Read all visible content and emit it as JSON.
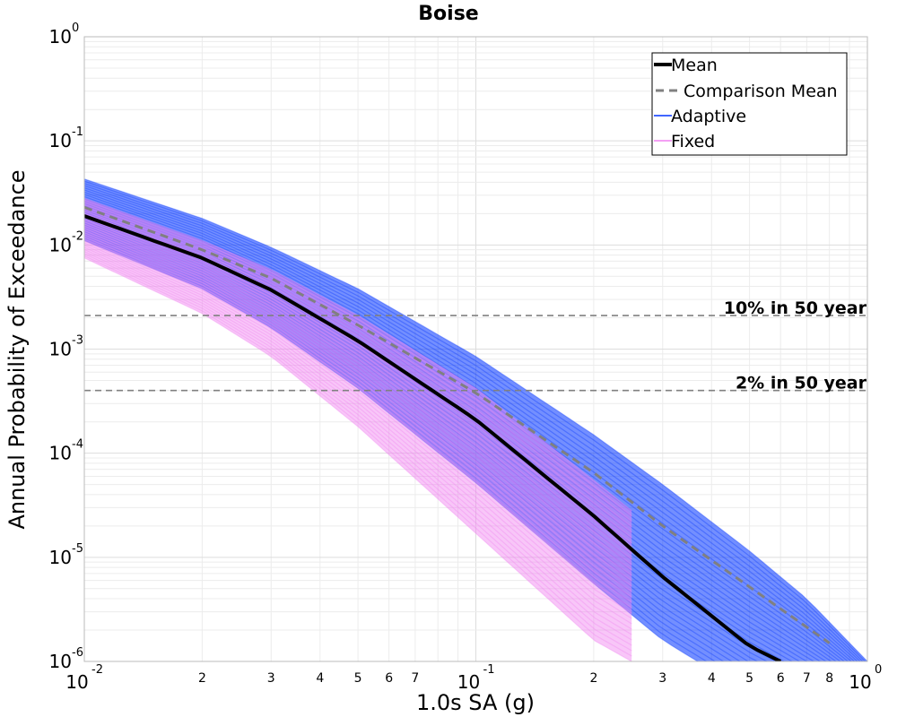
{
  "chart_data": {
    "type": "line",
    "title": "Boise",
    "xlabel": "1.0s SA (g)",
    "ylabel": "Annual Probability of Exceedance",
    "xscale": "log",
    "yscale": "log",
    "xlim": [
      0.01,
      1.0
    ],
    "ylim": [
      1e-06,
      1.0
    ],
    "grid": true,
    "legend_position": "top-right",
    "x_tick_labels": {
      "major": [
        {
          "value": 0.01,
          "base": "10",
          "exp": "-2"
        },
        {
          "value": 0.1,
          "base": "10",
          "exp": "-1"
        },
        {
          "value": 1.0,
          "base": "10",
          "exp": "0"
        }
      ],
      "minor": [
        {
          "value": 0.02,
          "label": "2"
        },
        {
          "value": 0.03,
          "label": "3"
        },
        {
          "value": 0.04,
          "label": "4"
        },
        {
          "value": 0.05,
          "label": "5"
        },
        {
          "value": 0.06,
          "label": "6"
        },
        {
          "value": 0.07,
          "label": "7"
        },
        {
          "value": 0.2,
          "label": "2"
        },
        {
          "value": 0.3,
          "label": "3"
        },
        {
          "value": 0.4,
          "label": "4"
        },
        {
          "value": 0.5,
          "label": "5"
        },
        {
          "value": 0.6,
          "label": "6"
        },
        {
          "value": 0.7,
          "label": "7"
        },
        {
          "value": 0.8,
          "label": "8"
        }
      ]
    },
    "y_tick_labels": [
      {
        "value": 1.0,
        "base": "10",
        "exp": "0"
      },
      {
        "value": 0.1,
        "base": "10",
        "exp": "-1"
      },
      {
        "value": 0.01,
        "base": "10",
        "exp": "-2"
      },
      {
        "value": 0.001,
        "base": "10",
        "exp": "-3"
      },
      {
        "value": 0.0001,
        "base": "10",
        "exp": "-4"
      },
      {
        "value": 1e-05,
        "base": "10",
        "exp": "-5"
      },
      {
        "value": 1e-06,
        "base": "10",
        "exp": "-6"
      }
    ],
    "series": [
      {
        "name": "Mean",
        "color": "#000000",
        "style": "solid",
        "x": [
          0.01,
          0.02,
          0.03,
          0.05,
          0.1,
          0.2,
          0.3,
          0.5,
          0.6
        ],
        "y": [
          0.019,
          0.0075,
          0.0037,
          0.0012,
          0.00021,
          2.5e-05,
          6.5e-06,
          1.4e-06,
          1e-06
        ]
      },
      {
        "name": "Comparison Mean",
        "color": "#808080",
        "style": "dashed",
        "x": [
          0.01,
          0.02,
          0.03,
          0.05,
          0.1,
          0.2,
          0.3,
          0.5,
          0.6,
          0.8
        ],
        "y": [
          0.023,
          0.009,
          0.0048,
          0.0017,
          0.00038,
          6.5e-05,
          2e-05,
          5.2e-06,
          3.2e-06,
          1.5e-06
        ]
      },
      {
        "name": "Adaptive",
        "color": "#0033ff",
        "style": "band",
        "x": [
          0.01,
          0.02,
          0.03,
          0.05,
          0.1,
          0.2,
          0.3,
          0.5,
          0.7,
          1.0
        ],
        "upper": [
          0.043,
          0.018,
          0.0095,
          0.0038,
          0.00085,
          0.00015,
          5e-05,
          1.15e-05,
          4e-06,
          1e-06
        ],
        "lower": [
          0.011,
          0.0038,
          0.0016,
          0.00042,
          5.2e-05,
          5.6e-06,
          1.6e-06,
          5e-07,
          3e-07,
          2.5e-07
        ]
      },
      {
        "name": "Fixed",
        "color": "#f080f0",
        "style": "band",
        "x": [
          0.01,
          0.02,
          0.03,
          0.05,
          0.1,
          0.2,
          0.25
        ],
        "upper": [
          0.028,
          0.011,
          0.0058,
          0.0021,
          0.00042,
          5.5e-05,
          2.8e-05
        ],
        "lower": [
          0.0075,
          0.0022,
          0.00085,
          0.00018,
          1.7e-05,
          1.6e-06,
          1e-06
        ]
      }
    ],
    "reference_lines": [
      {
        "label": "10% in 50 year",
        "y": 0.0021,
        "color": "#808080"
      },
      {
        "label": "2% in 50 year",
        "y": 0.0004,
        "color": "#808080"
      }
    ]
  }
}
